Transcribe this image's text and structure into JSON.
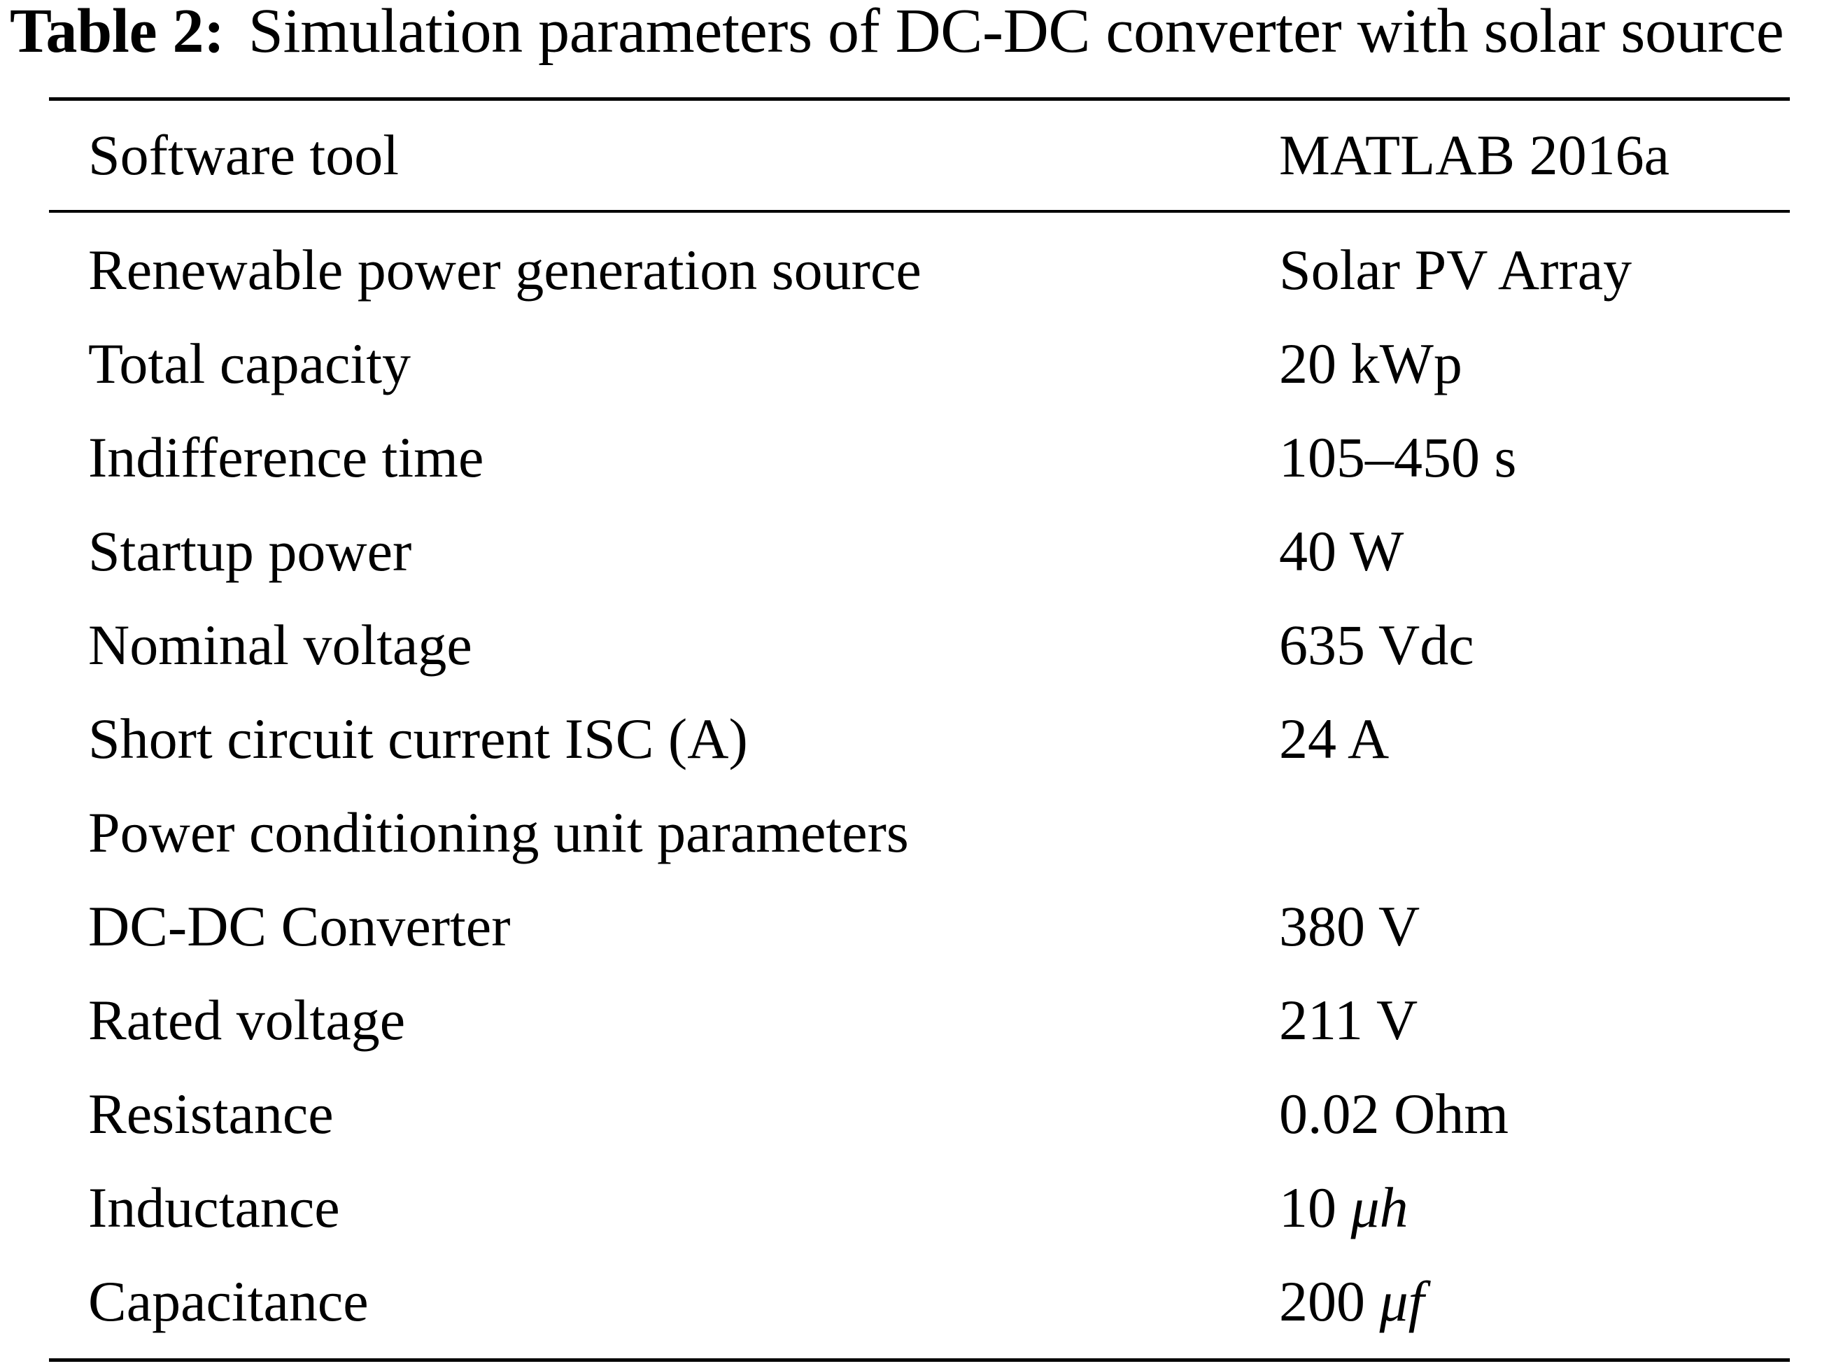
{
  "caption": {
    "label": "Table 2:",
    "text": "Simulation parameters of DC-DC converter with solar source"
  },
  "header": {
    "param": "Software tool",
    "value": "MATLAB 2016a"
  },
  "rows": [
    {
      "param": "Renewable power generation source",
      "value": "Solar PV Array"
    },
    {
      "param": "Total capacity",
      "value": "20 kWp"
    },
    {
      "param": "Indifference time",
      "value": "105–450 s"
    },
    {
      "param": "Startup power",
      "value": "40 W"
    },
    {
      "param": "Nominal voltage",
      "value": "635 Vdc"
    },
    {
      "param": "Short circuit current ISC (A)",
      "value": "24 A"
    },
    {
      "param": "Power conditioning unit parameters",
      "value": ""
    },
    {
      "param": "DC-DC Converter",
      "value": "380 V"
    },
    {
      "param": "Rated voltage",
      "value": "211 V"
    },
    {
      "param": "Resistance",
      "value": "0.02 Ohm"
    },
    {
      "param": "Inductance",
      "value": "10",
      "unit": "μh"
    },
    {
      "param": "Capacitance",
      "value": "200",
      "unit": "μf"
    }
  ]
}
